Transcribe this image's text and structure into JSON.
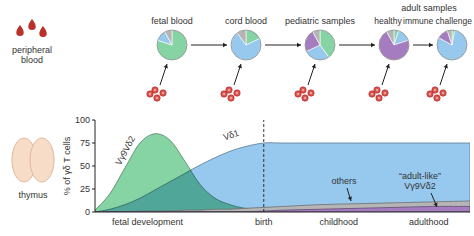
{
  "labels": [
    "peripheral blood",
    "thymus"
  ],
  "chart_data": [
    {
      "type": "area",
      "x": [
        0,
        4,
        8,
        12,
        16,
        20,
        24,
        28,
        32,
        36,
        40,
        45,
        50,
        60,
        70,
        80,
        90,
        100
      ],
      "xlim": [
        0,
        100
      ],
      "xticks": [
        {
          "value": 14,
          "label": "fetal development"
        },
        {
          "value": 45,
          "label": "birth"
        },
        {
          "value": 65,
          "label": "childhood"
        },
        {
          "value": 89,
          "label": "adulthood"
        }
      ],
      "ylim": [
        0,
        100
      ],
      "yticks": [
        0,
        25,
        50,
        75,
        100
      ],
      "y_label": "% of γδ T cells",
      "grid": false,
      "annotations": [
        {
          "x": 45,
          "line_style": "dashed"
        }
      ],
      "series": [
        {
          "name": "Vγ9Vδ2",
          "color": "#86d3a3",
          "values": [
            2,
            20,
            48,
            75,
            85,
            78,
            55,
            30,
            15,
            8,
            4,
            2,
            1,
            0,
            0,
            0,
            0,
            0
          ]
        },
        {
          "name": "Vδ1",
          "color": "#97c9ef",
          "values": [
            0,
            3,
            8,
            15,
            24,
            33,
            42,
            51,
            59,
            66,
            71,
            75,
            75,
            75,
            75,
            75,
            75,
            75
          ]
        },
        {
          "name": "others",
          "color": "#b5b5b5",
          "values": [
            0,
            0,
            0,
            1,
            1,
            1,
            2,
            2,
            3,
            3,
            4,
            5,
            6,
            8,
            9,
            10,
            11,
            12
          ]
        },
        {
          "name": "“adult-like” Vγ9Vδ2",
          "color": "#a57cc0",
          "values": [
            0,
            0,
            0,
            0,
            0,
            0,
            0,
            0,
            0,
            0,
            0,
            1,
            2,
            3,
            4,
            5,
            6,
            6
          ]
        }
      ]
    },
    {
      "type": "pie",
      "categories": [
        "fetal blood",
        "cord blood",
        "pediatric samples",
        "healthy",
        "immune challenge"
      ],
      "annotations": [
        {
          "text": "adult samples"
        }
      ],
      "series": [
        {
          "color": "#86d3a3",
          "values": [
            80,
            18,
            40,
            5,
            3
          ]
        },
        {
          "color": "#97c9ef",
          "values": [
            12,
            72,
            28,
            15,
            80
          ]
        },
        {
          "color": "#a57cc0",
          "values": [
            0,
            0,
            24,
            72,
            12
          ]
        },
        {
          "color": "#b5b5b5",
          "values": [
            8,
            10,
            8,
            8,
            5
          ]
        }
      ]
    }
  ]
}
